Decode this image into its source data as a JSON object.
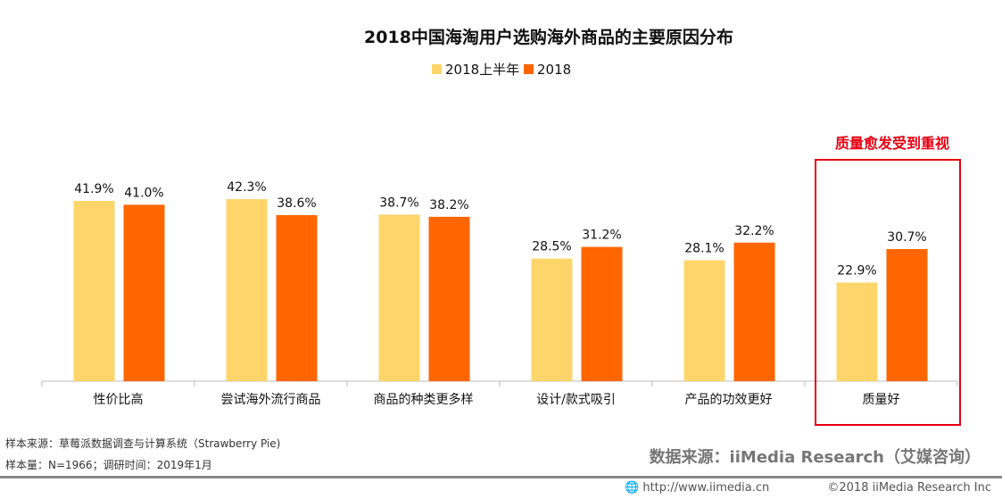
{
  "chart_data": {
    "type": "bar",
    "title": "2018中国海淘用户选购海外商品的主要原因分布",
    "categories": [
      "性价比高",
      "尝试海外流行商品",
      "商品的种类更多样",
      "设计/款式吸引",
      "产品的功效更好",
      "质量好"
    ],
    "series": [
      {
        "name": "2018上半年",
        "color": "#FDD56A",
        "values": [
          41.9,
          42.3,
          38.7,
          28.5,
          28.1,
          22.9
        ]
      },
      {
        "name": "2018",
        "color": "#FF6600",
        "values": [
          41.0,
          38.6,
          38.2,
          31.2,
          32.2,
          30.7
        ]
      }
    ],
    "value_suffix": "%",
    "legend_position": "top",
    "grid": false,
    "ylim": [
      0,
      50
    ],
    "annotation": {
      "text": "质量愈发受到重视",
      "color": "#E60012",
      "highlight_category": "质量好"
    }
  },
  "footer": {
    "sample_source": "样本来源：草莓派数据调查与计算系统（Strawberry Pie)",
    "sample_size": "样本量：N=1966；调研时间：2019年1月",
    "data_source": "数据来源：iiMedia Research（艾媒咨询）",
    "website": "http://www.iimedia.cn",
    "copyright": "©2018  iiMedia Research  Inc",
    "globe_icon": "globe-icon"
  }
}
